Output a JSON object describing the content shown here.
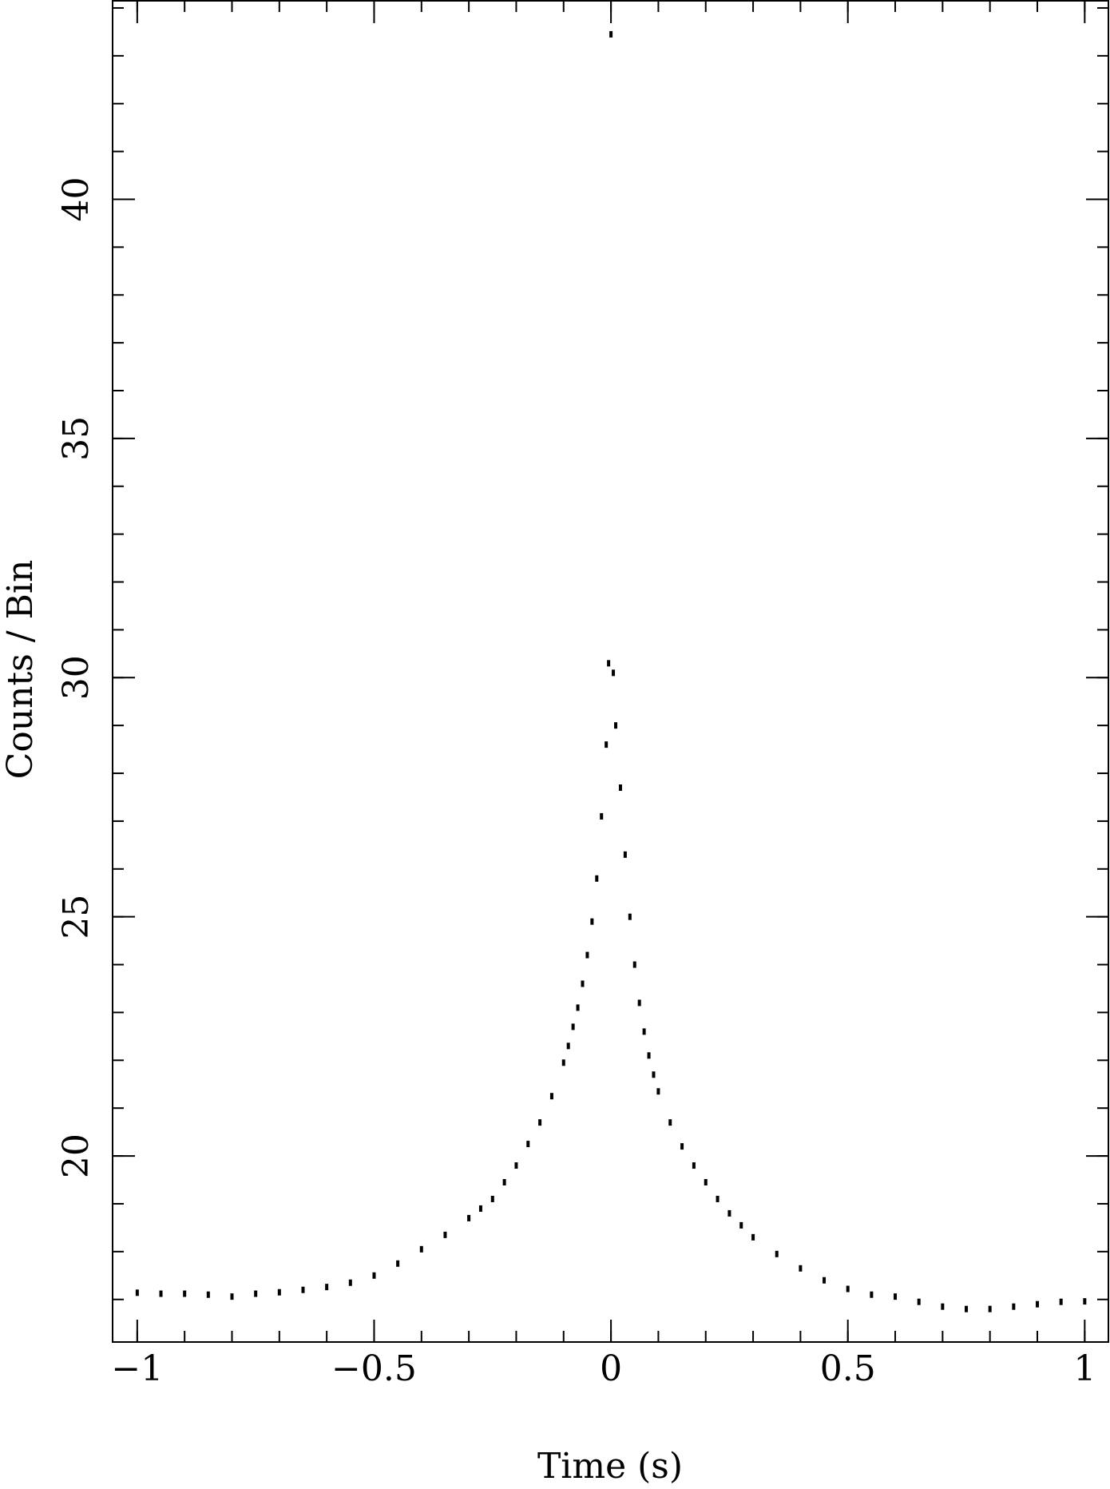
{
  "chart_data": {
    "type": "scatter",
    "xlabel": "Time (s)",
    "ylabel": "Counts / Bin",
    "x": [
      -1,
      -0.95,
      -0.9,
      -0.85,
      -0.8,
      -0.75,
      -0.7,
      -0.65,
      -0.6,
      -0.55,
      -0.5,
      -0.45,
      -0.4,
      -0.35,
      -0.3,
      -0.275,
      -0.25,
      -0.225,
      -0.2,
      -0.175,
      -0.15,
      -0.125,
      -0.1,
      -0.09,
      -0.08,
      -0.07,
      -0.06,
      -0.05,
      -0.04,
      -0.03,
      -0.02,
      -0.01,
      -0.005,
      0,
      0.005,
      0.01,
      0.02,
      0.03,
      0.04,
      0.05,
      0.06,
      0.07,
      0.08,
      0.09,
      0.1,
      0.125,
      0.15,
      0.175,
      0.2,
      0.225,
      0.25,
      0.275,
      0.3,
      0.35,
      0.4,
      0.45,
      0.5,
      0.55,
      0.6,
      0.65,
      0.7,
      0.75,
      0.8,
      0.85,
      0.9,
      0.95,
      1
    ],
    "series": [
      {
        "color": "#000000",
        "values": [
          17.14,
          17.12,
          17.12,
          17.1,
          17.06,
          17.12,
          17.15,
          17.2,
          17.26,
          17.35,
          17.5,
          17.75,
          18.05,
          18.35,
          18.7,
          18.9,
          19.1,
          19.45,
          19.8,
          20.25,
          20.7,
          21.25,
          21.95,
          22.3,
          22.7,
          23.1,
          23.6,
          24.2,
          24.9,
          25.8,
          27.1,
          28.6,
          30.3,
          43.45,
          30.1,
          29.0,
          27.7,
          26.3,
          25.0,
          24.0,
          23.2,
          22.6,
          22.1,
          21.7,
          21.35,
          20.7,
          20.2,
          19.8,
          19.45,
          19.1,
          18.8,
          18.55,
          18.3,
          17.95,
          17.65,
          17.4,
          17.22,
          17.1,
          17.06,
          16.95,
          16.85,
          16.8,
          16.8,
          16.85,
          16.9,
          16.95,
          16.96
        ]
      }
    ],
    "xlim": [
      -1.052,
      1.05
    ],
    "ylim": [
      16.11,
      44.15
    ],
    "xticks": [
      {
        "value": -1,
        "label": "−1"
      },
      {
        "value": -0.5,
        "label": "−0.5"
      },
      0,
      0.5,
      1
    ],
    "xminor": [
      -1,
      -0.9,
      -0.8,
      -0.7,
      -0.6,
      -0.5,
      -0.4,
      -0.3,
      -0.2,
      -0.1,
      0,
      0.1,
      0.2,
      0.3,
      0.4,
      0.5,
      0.6,
      0.7,
      0.8,
      0.9,
      1
    ],
    "yticks": [
      20,
      25,
      30,
      35,
      40
    ],
    "yminor": [
      17,
      18,
      19,
      20,
      21,
      22,
      23,
      24,
      25,
      26,
      27,
      28,
      29,
      30,
      31,
      32,
      33,
      34,
      35,
      36,
      37,
      38,
      39,
      40,
      41,
      42,
      43,
      44
    ]
  }
}
